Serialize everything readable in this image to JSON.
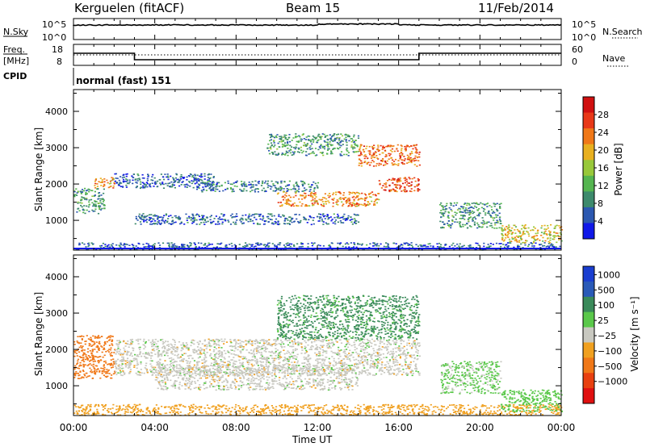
{
  "header": {
    "station": "Kerguelen (fitACF)",
    "beam": "Beam 15",
    "date": "11/Feb/2014"
  },
  "strip1": {
    "left_label": "N.Sky",
    "right_label": "N.Search",
    "left_ticks": [
      "10^5",
      "10^0"
    ],
    "right_ticks": [
      "10^5",
      "10^0"
    ]
  },
  "strip2": {
    "left_label_line1": "Freq.",
    "left_label_line2": "[MHz]",
    "right_label": "Nave",
    "left_ticks": [
      "18",
      "8"
    ],
    "right_ticks": [
      "60",
      "0"
    ]
  },
  "cpid": {
    "label": "CPID",
    "text": "normal (fast) 151"
  },
  "axes": {
    "ylabel": "Slant Range [km]",
    "xlabel": "Time UT",
    "y_ticks": [
      "1000",
      "2000",
      "3000",
      "4000"
    ],
    "x_ticks": [
      "00:00",
      "04:00",
      "08:00",
      "12:00",
      "16:00",
      "20:00",
      "00:00"
    ]
  },
  "power_bar": {
    "label": "Power [dB]",
    "ticks": [
      "4",
      "8",
      "12",
      "16",
      "20",
      "24",
      "28"
    ]
  },
  "velocity_bar": {
    "label": "Velocity [m s⁻¹]",
    "ticks": [
      "1000",
      "500",
      "100",
      "25",
      "−25",
      "−100",
      "−500",
      "−1000"
    ]
  },
  "chart_data": [
    {
      "type": "heatmap",
      "quantity": "Power",
      "unit": "dB",
      "ylabel": "Slant Range [km]",
      "xlabel": "Time UT",
      "x_range_hours": [
        0,
        24
      ],
      "ylim": [
        180,
        4600
      ],
      "color_range": [
        0,
        32
      ],
      "colors": [
        "#1018e8",
        "#2c58b0",
        "#3d8a6c",
        "#55b550",
        "#98c83a",
        "#e8b020",
        "#f07818",
        "#e83818",
        "#d01010"
      ],
      "features": [
        {
          "t_start": 0.0,
          "t_end": 1.5,
          "range_km": [
            1200,
            1900
          ],
          "power_db": 10
        },
        {
          "t_start": 1.0,
          "t_end": 2.0,
          "range_km": [
            1900,
            2200
          ],
          "power_db": 22
        },
        {
          "t_start": 2.0,
          "t_end": 7.0,
          "range_km": [
            1900,
            2300
          ],
          "power_db": 6
        },
        {
          "t_start": 6.0,
          "t_end": 12.0,
          "range_km": [
            1800,
            2100
          ],
          "power_db": 8
        },
        {
          "t_start": 10.0,
          "t_end": 15.0,
          "range_km": [
            1400,
            1800
          ],
          "power_db": 22
        },
        {
          "t_start": 15.0,
          "t_end": 17.0,
          "range_km": [
            1800,
            2200
          ],
          "power_db": 26
        },
        {
          "t_start": 9.5,
          "t_end": 14.0,
          "range_km": [
            2800,
            3400
          ],
          "power_db": 10
        },
        {
          "t_start": 14.0,
          "t_end": 17.0,
          "range_km": [
            2500,
            3100
          ],
          "power_db": 24
        },
        {
          "t_start": 3.0,
          "t_end": 14.0,
          "range_km": [
            900,
            1200
          ],
          "power_db": 6
        },
        {
          "t_start": 0.0,
          "t_end": 24.0,
          "range_km": [
            200,
            400
          ],
          "power_db": 6
        },
        {
          "t_start": 18.0,
          "t_end": 21.0,
          "range_km": [
            800,
            1500
          ],
          "power_db": 10
        },
        {
          "t_start": 21.0,
          "t_end": 24.0,
          "range_km": [
            400,
            900
          ],
          "power_db": 18
        }
      ]
    },
    {
      "type": "heatmap",
      "quantity": "Velocity",
      "unit": "m s⁻¹",
      "ylabel": "Slant Range [km]",
      "xlabel": "Time UT",
      "x_range_hours": [
        0,
        24
      ],
      "ylim": [
        180,
        4600
      ],
      "color_levels": [
        1000,
        500,
        100,
        25,
        -25,
        -100,
        -500,
        -1000
      ],
      "colors": [
        "#1a3ed0",
        "#2a5ab8",
        "#3a8a5a",
        "#5ac84a",
        "#c8c8c0",
        "#f0a020",
        "#f07818",
        "#e84010",
        "#e01010"
      ],
      "features": [
        {
          "t_start": 0.0,
          "t_end": 2.0,
          "range_km": [
            1200,
            2400
          ],
          "velocity": -300
        },
        {
          "t_start": 2.0,
          "t_end": 17.0,
          "range_km": [
            1300,
            2300
          ],
          "velocity": 0
        },
        {
          "t_start": 4.0,
          "t_end": 14.0,
          "range_km": [
            900,
            1600
          ],
          "velocity": 0
        },
        {
          "t_start": 10.0,
          "t_end": 17.0,
          "range_km": [
            2300,
            3500
          ],
          "velocity": 120
        },
        {
          "t_start": 0.0,
          "t_end": 24.0,
          "range_km": [
            200,
            500
          ],
          "velocity": -60
        },
        {
          "t_start": 18.0,
          "t_end": 21.0,
          "range_km": [
            800,
            1700
          ],
          "velocity": 40
        },
        {
          "t_start": 21.0,
          "t_end": 24.0,
          "range_km": [
            300,
            900
          ],
          "velocity": 60
        }
      ]
    }
  ]
}
